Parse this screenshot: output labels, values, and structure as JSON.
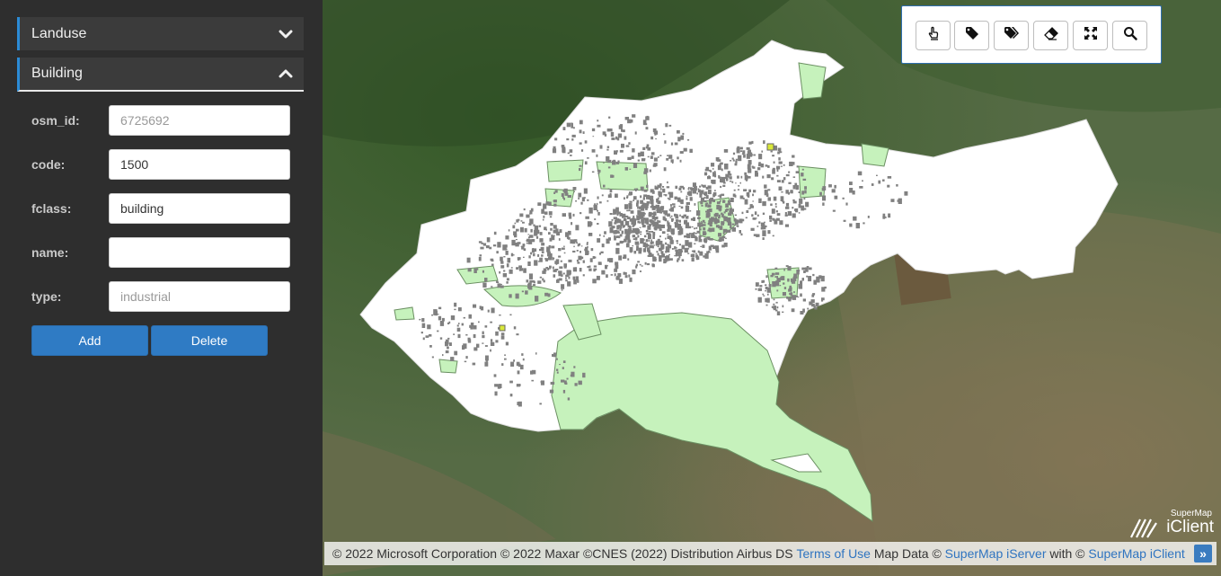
{
  "sidebar": {
    "panels": [
      {
        "title": "Landuse",
        "state": "collapsed"
      },
      {
        "title": "Building",
        "state": "expanded"
      }
    ],
    "form": {
      "fields": [
        {
          "label": "osm_id:",
          "value": "",
          "placeholder": "6725692"
        },
        {
          "label": "code:",
          "value": "1500",
          "placeholder": ""
        },
        {
          "label": "fclass:",
          "value": "building",
          "placeholder": ""
        },
        {
          "label": "name:",
          "value": "",
          "placeholder": ""
        },
        {
          "label": "type:",
          "value": "",
          "placeholder": "industrial"
        }
      ],
      "add_label": "Add",
      "delete_label": "Delete"
    }
  },
  "toolbar": {
    "tools": [
      {
        "icon": "hand-pointer-icon"
      },
      {
        "icon": "tag-icon"
      },
      {
        "icon": "tags-icon"
      },
      {
        "icon": "eraser-icon"
      },
      {
        "icon": "fullscreen-icon"
      },
      {
        "icon": "search-icon"
      }
    ]
  },
  "attribution": {
    "prefix": "© 2022 Microsoft Corporation © 2022 Maxar ©CNES (2022) Distribution Airbus DS",
    "terms_link": "Terms of Use",
    "map_data": "Map Data ©",
    "iserver_link": "SuperMap iServer",
    "with_text": "with ©",
    "iclient_link": "SuperMap iClient",
    "toggle": "»"
  },
  "logo": {
    "line1": "SuperMap",
    "line2": "iClient"
  },
  "colors": {
    "accent": "#2f7bc4",
    "sidebar_bg": "#2e2e2e",
    "landuse_fill": "#c8f5c0",
    "building_fill": "#808080",
    "highlight_fill": "#d9e83a"
  }
}
